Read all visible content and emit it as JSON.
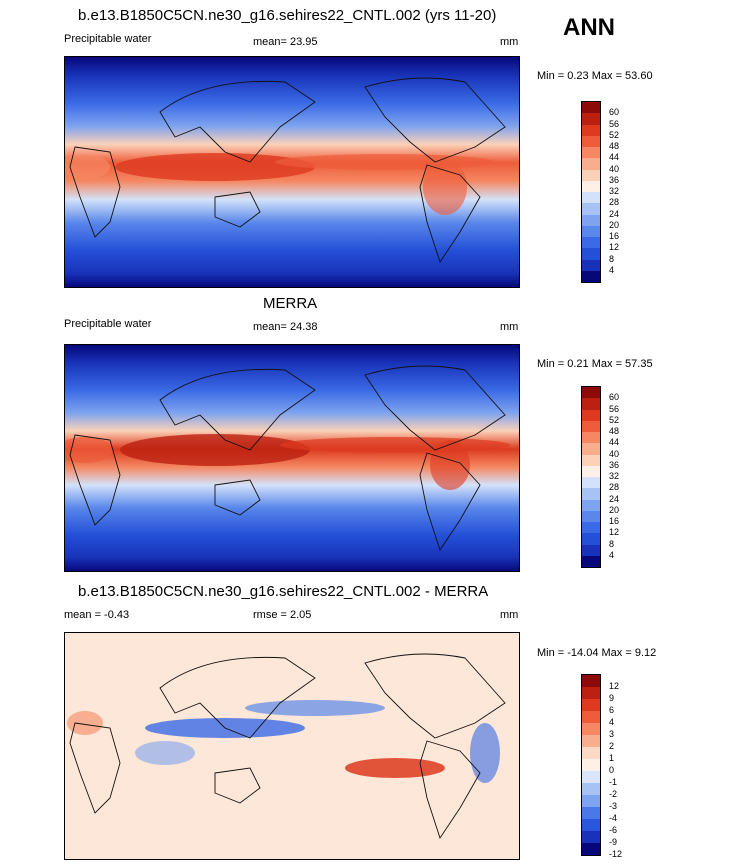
{
  "season": "ANN",
  "panels": [
    {
      "title": "b.e13.B1850C5CN.ne30_g16.sehires22_CNTL.002 (yrs 11-20)",
      "left_label": "Precipitable water",
      "center_label": "mean=  23.95",
      "units": "mm",
      "minmax": "Min =  0.23 Max =  53.60",
      "colors": [
        "#07077a",
        "#1833b9",
        "#2450d8",
        "#3a6ae6",
        "#5a87ea",
        "#7ea3ef",
        "#a7c2f4",
        "#d3e2fa",
        "#fdf0e6",
        "#fbd1b8",
        "#f8ad8c",
        "#f58862",
        "#ee5c3a",
        "#dd3a1f",
        "#bb2010",
        "#8c0a07"
      ],
      "levels": [
        "4",
        "8",
        "12",
        "16",
        "20",
        "24",
        "28",
        "32",
        "36",
        "40",
        "44",
        "48",
        "52",
        "56",
        "60"
      ]
    },
    {
      "title": "MERRA",
      "left_label": "Precipitable water",
      "center_label": "mean=  24.38",
      "units": "mm",
      "minmax": "Min =  0.21 Max =  57.35",
      "colors": [
        "#07077a",
        "#1833b9",
        "#2450d8",
        "#3a6ae6",
        "#5a87ea",
        "#7ea3ef",
        "#a7c2f4",
        "#d3e2fa",
        "#fdf0e6",
        "#fbd1b8",
        "#f8ad8c",
        "#f58862",
        "#ee5c3a",
        "#dd3a1f",
        "#bb2010",
        "#8c0a07"
      ],
      "levels": [
        "4",
        "8",
        "12",
        "16",
        "20",
        "24",
        "28",
        "32",
        "36",
        "40",
        "44",
        "48",
        "52",
        "56",
        "60"
      ]
    },
    {
      "title": "b.e13.B1850C5CN.ne30_g16.sehires22_CNTL.002 - MERRA",
      "left_label": "mean =  -0.43",
      "center_label": "rmse =   2.05",
      "units": "mm",
      "minmax": "Min = -14.04 Max =   9.12",
      "colors": [
        "#07077a",
        "#1833b9",
        "#2a55dd",
        "#4a78e8",
        "#7ea3ef",
        "#a7c2f4",
        "#d8e5fb",
        "#fdf0e6",
        "#fbd9c4",
        "#f8ad8c",
        "#f58862",
        "#ee5c3a",
        "#dd3a1f",
        "#bb2010",
        "#8c0a07"
      ],
      "levels": [
        "-12",
        "-9",
        "-6",
        "-4",
        "-3",
        "-2",
        "-1",
        "0",
        "1",
        "2",
        "3",
        "4",
        "6",
        "9",
        "12"
      ]
    }
  ]
}
